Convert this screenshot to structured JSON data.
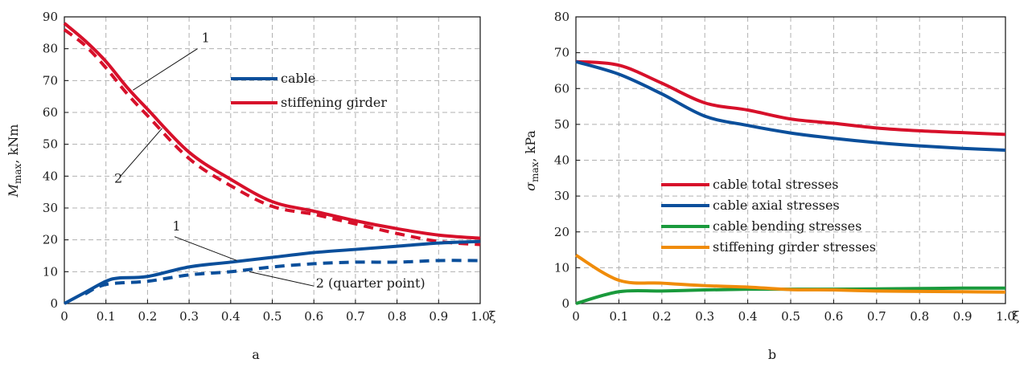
{
  "colors": {
    "red": "#d7102a",
    "blue": "#0b4f9b",
    "green": "#1a9a3c",
    "orange": "#f08c0a",
    "grid": "#b0b0b0",
    "axis": "#111111"
  },
  "chart_data": [
    {
      "type": "line",
      "subplot_label": "a",
      "ylabel_main": "M",
      "ylabel_sub": "max",
      "ylabel_unit": ", kNm",
      "xlabel": "ξ",
      "xlim": [
        0,
        1
      ],
      "ylim": [
        0,
        90
      ],
      "xticks": [
        "0",
        "0.1",
        "0.2",
        "0.3",
        "0.4",
        "0.5",
        "0.6",
        "0.7",
        "0.8",
        "0.9",
        "1.0"
      ],
      "xtick_values": [
        0,
        0.1,
        0.2,
        0.3,
        0.4,
        0.5,
        0.6,
        0.7,
        0.8,
        0.9,
        1.0
      ],
      "yticks": [
        "0",
        "10",
        "20",
        "30",
        "40",
        "50",
        "60",
        "70",
        "80",
        "90"
      ],
      "ytick_values": [
        0,
        10,
        20,
        30,
        40,
        50,
        60,
        70,
        80,
        90
      ],
      "grid": true,
      "legend_position": "upper-right",
      "legend": [
        {
          "label": "cable",
          "color": "#0b4f9b"
        },
        {
          "label": "stiffening girder",
          "color": "#d7102a"
        }
      ],
      "series": [
        {
          "color": "#d7102a",
          "style": "solid",
          "x": [
            0,
            0.05,
            0.1,
            0.15,
            0.2,
            0.3,
            0.4,
            0.5,
            0.6,
            0.7,
            0.8,
            0.9,
            1.0
          ],
          "y": [
            88,
            82.5,
            76,
            68,
            61,
            47.5,
            39,
            32,
            29,
            26,
            23.5,
            21.5,
            20.5
          ]
        },
        {
          "color": "#d7102a",
          "style": "dashed",
          "x": [
            0,
            0.05,
            0.1,
            0.15,
            0.2,
            0.3,
            0.4,
            0.5,
            0.6,
            0.7,
            0.8,
            0.9,
            1.0
          ],
          "y": [
            86,
            81,
            74,
            66,
            59,
            45.5,
            37,
            30.5,
            28,
            25,
            22,
            19.5,
            18.5
          ]
        },
        {
          "color": "#0b4f9b",
          "style": "solid",
          "x": [
            0,
            0.05,
            0.1,
            0.13,
            0.2,
            0.3,
            0.4,
            0.5,
            0.6,
            0.7,
            0.8,
            0.9,
            1.0
          ],
          "y": [
            0,
            3.5,
            7,
            8,
            8.5,
            11.5,
            13,
            14.5,
            16,
            17,
            18,
            19,
            19.5
          ]
        },
        {
          "color": "#0b4f9b",
          "style": "dashed",
          "x": [
            0.05,
            0.1,
            0.2,
            0.3,
            0.4,
            0.5,
            0.6,
            0.7,
            0.8,
            0.9,
            1.0
          ],
          "y": [
            3,
            6,
            7,
            9,
            10,
            11.5,
            12.5,
            13,
            13,
            13.5,
            13.5
          ]
        }
      ],
      "annotations": [
        {
          "text": "1",
          "x": 0.33,
          "y": 82
        },
        {
          "text": "2",
          "x": 0.12,
          "y": 38
        },
        {
          "text": "1",
          "x": 0.26,
          "y": 23
        },
        {
          "text": "2 (quarter point)",
          "x": 0.605,
          "y": 5
        }
      ]
    },
    {
      "type": "line",
      "subplot_label": "b",
      "ylabel_main": "σ",
      "ylabel_sub": "max",
      "ylabel_unit": ", kPa",
      "xlabel": "ξ",
      "xlim": [
        0,
        1
      ],
      "ylim": [
        0,
        80
      ],
      "xticks": [
        "0",
        "0.1",
        "0.2",
        "0.3",
        "0.4",
        "0.5",
        "0.6",
        "0.7",
        "0.8",
        "0.9",
        "1.0"
      ],
      "xtick_values": [
        0,
        0.1,
        0.2,
        0.3,
        0.4,
        0.5,
        0.6,
        0.7,
        0.8,
        0.9,
        1.0
      ],
      "yticks": [
        "0",
        "10",
        "20",
        "30",
        "40",
        "50",
        "60",
        "70",
        "80"
      ],
      "ytick_values": [
        0,
        10,
        20,
        30,
        40,
        50,
        60,
        70,
        80
      ],
      "grid": true,
      "legend_position": "center-right",
      "legend": [
        {
          "label": "cable total stresses",
          "color": "#d7102a"
        },
        {
          "label": "cable axial stresses",
          "color": "#0b4f9b"
        },
        {
          "label": "cable bending stresses",
          "color": "#1a9a3c"
        },
        {
          "label": "stiffening girder stresses",
          "color": "#f08c0a"
        }
      ],
      "series": [
        {
          "name": "cable total stresses",
          "color": "#d7102a",
          "x": [
            0,
            0.1,
            0.2,
            0.3,
            0.4,
            0.5,
            0.6,
            0.7,
            0.8,
            0.9,
            1.0
          ],
          "y": [
            67.5,
            66.5,
            61.5,
            56,
            54,
            51.5,
            50.3,
            49,
            48.2,
            47.7,
            47.2
          ]
        },
        {
          "name": "cable axial stresses",
          "color": "#0b4f9b",
          "x": [
            0,
            0.1,
            0.2,
            0.3,
            0.4,
            0.5,
            0.6,
            0.7,
            0.8,
            0.9,
            1.0
          ],
          "y": [
            67.5,
            64,
            58.5,
            52.3,
            49.7,
            47.6,
            46.1,
            44.9,
            44,
            43.3,
            42.8
          ]
        },
        {
          "name": "cable bending stresses",
          "color": "#1a9a3c",
          "x": [
            0,
            0.1,
            0.2,
            0.3,
            0.4,
            0.5,
            0.6,
            0.7,
            0.8,
            0.9,
            1.0
          ],
          "y": [
            0,
            3.3,
            3.5,
            3.8,
            4,
            4,
            4,
            4.1,
            4.2,
            4.3,
            4.3
          ]
        },
        {
          "name": "stiffening girder stresses",
          "color": "#f08c0a",
          "x": [
            0,
            0.1,
            0.2,
            0.3,
            0.4,
            0.5,
            0.6,
            0.7,
            0.8,
            0.9,
            1.0
          ],
          "y": [
            13.5,
            6.5,
            5.7,
            5,
            4.6,
            3.9,
            3.8,
            3.5,
            3.4,
            3.3,
            3.2
          ]
        }
      ]
    }
  ]
}
